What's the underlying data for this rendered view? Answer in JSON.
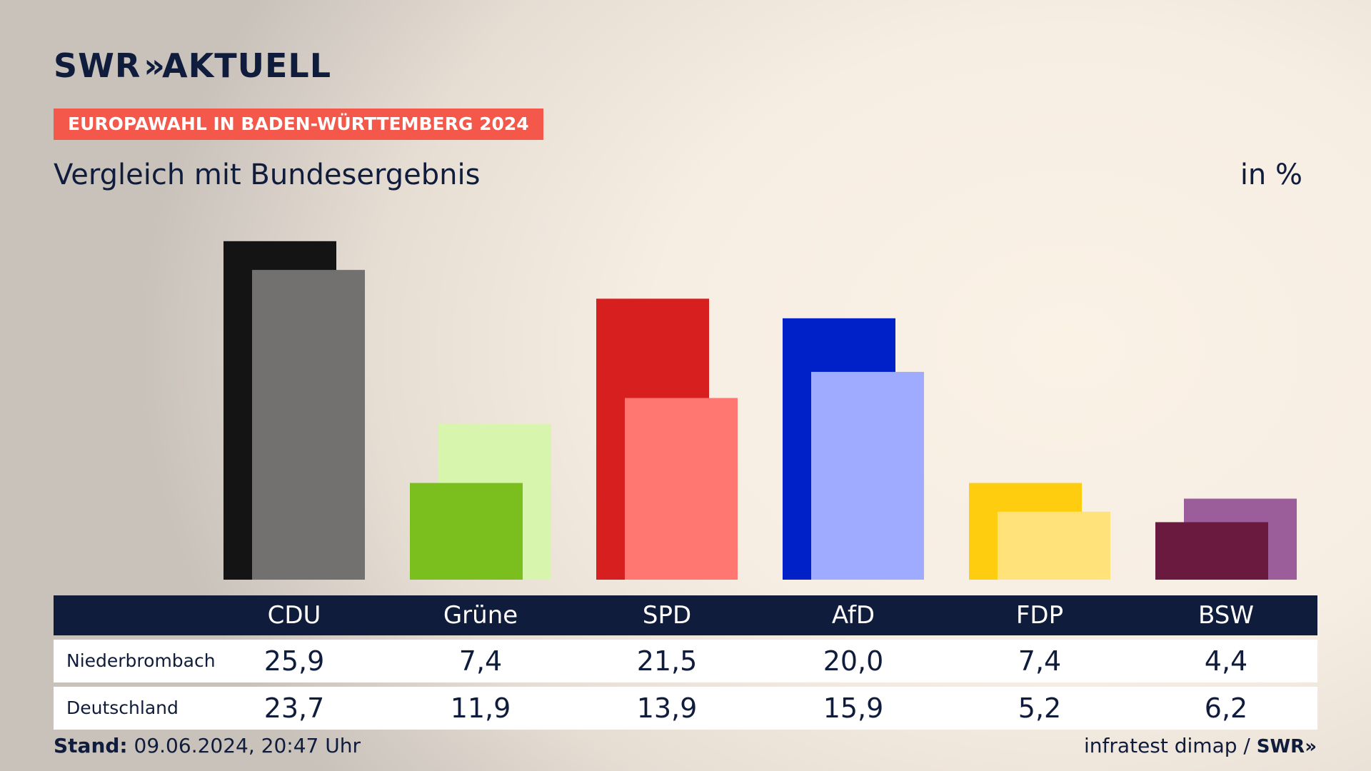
{
  "brand": {
    "logo_left": "SWR",
    "logo_chevron": "»",
    "logo_right": "AKTUELL"
  },
  "badge": "EUROPAWAHL IN BADEN-WÜRTTEMBERG 2024",
  "subtitle": "Vergleich mit Bundesergebnis",
  "unit": "in %",
  "chart_data": {
    "type": "bar",
    "categories": [
      "CDU",
      "Grüne",
      "SPD",
      "AfD",
      "FDP",
      "BSW"
    ],
    "series": [
      {
        "name": "Niederbrombach",
        "values": [
          25.9,
          7.4,
          21.5,
          20.0,
          7.4,
          4.4
        ]
      },
      {
        "name": "Deutschland",
        "values": [
          23.7,
          11.9,
          13.9,
          15.9,
          5.2,
          6.2
        ]
      }
    ],
    "display_values": [
      [
        "25,9",
        "7,4",
        "21,5",
        "20,0",
        "7,4",
        "4,4"
      ],
      [
        "23,7",
        "11,9",
        "13,9",
        "15,9",
        "5,2",
        "6,2"
      ]
    ],
    "colors_primary": [
      "#141414",
      "#7abf1e",
      "#d71f1f",
      "#0020c8",
      "#ffcd0f",
      "#6b1a3f"
    ],
    "colors_secondary": [
      "#737170",
      "#d8f5ad",
      "#ff7770",
      "#9fabff",
      "#ffe27a",
      "#9c5e9b"
    ],
    "ylim": [
      0,
      26
    ]
  },
  "footer": {
    "stand_label": "Stand:",
    "stand_value": "09.06.2024, 20:47 Uhr",
    "source": "infratest dimap /",
    "source_logo": "SWR»"
  }
}
